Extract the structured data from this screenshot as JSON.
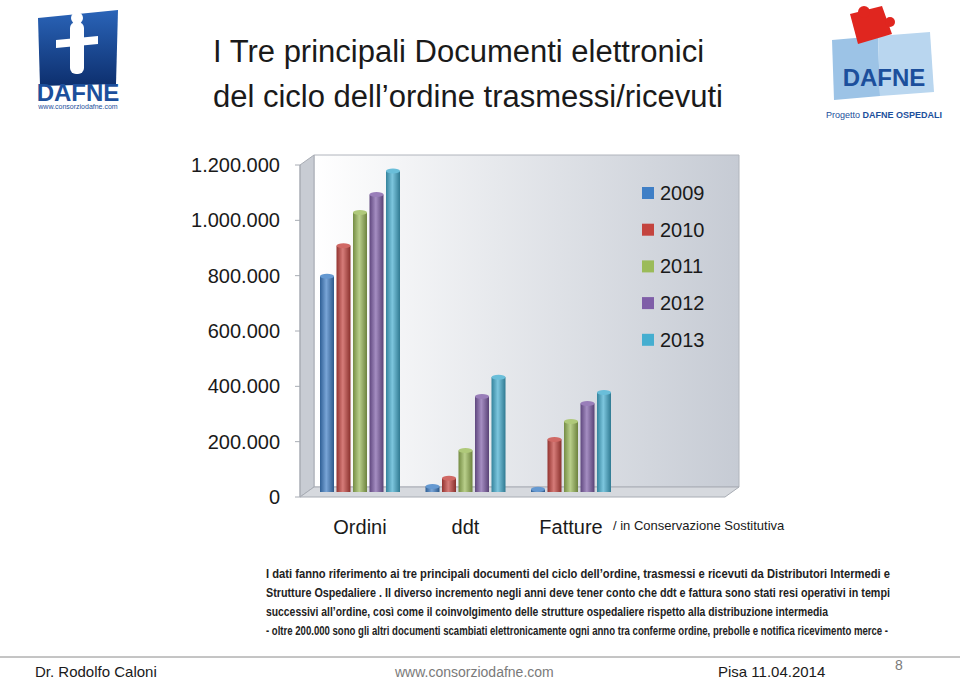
{
  "slide": {
    "title_lines": [
      "I Tre principali Documenti elettronici",
      "del ciclo dell’ordine trasmessi/ricevuti"
    ],
    "logo_left": {
      "name": "DAFNE",
      "url": "www.consorziodafne.com"
    },
    "logo_right": {
      "name": "DAFNE",
      "line1": "Progetto",
      "line2": "DAFNE OSPEDALI"
    },
    "note_lines": [
      "I dati fanno riferimento ai tre principali documenti del ciclo dell’ordine, trasmessi e ricevuti da Distributori Intermedi e",
      "Strutture Ospedaliere . Il diverso incremento negli anni deve tener conto che ddt e fattura sono stati resi operativi in tempi",
      "successivi all’ordine, così come il coinvolgimento delle strutture ospedaliere rispetto alla distribuzione intermedia",
      "- oltre 200.000 sono gli altri documenti scambiati elettronicamente ogni anno tra conferme ordine, prebolle e notifica ricevimento merce -"
    ],
    "footer": {
      "author": "Dr. Rodolfo Caloni",
      "website": "www.consorziodafne.com",
      "place_date": "Pisa 11.04.2014",
      "page": 8
    }
  },
  "chart_data": {
    "type": "bar",
    "categories": [
      "Ordini",
      "ddt",
      "Fatture"
    ],
    "series": [
      {
        "name": "2009",
        "color": "#3f7fc6",
        "values": [
          780000,
          20000,
          10000
        ]
      },
      {
        "name": "2010",
        "color": "#c4443f",
        "values": [
          890000,
          50000,
          190000
        ]
      },
      {
        "name": "2011",
        "color": "#9bbb59",
        "values": [
          1010000,
          150000,
          255000
        ]
      },
      {
        "name": "2012",
        "color": "#7f5ea8",
        "values": [
          1075000,
          345000,
          320000
        ]
      },
      {
        "name": "2013",
        "color": "#45aed0",
        "values": [
          1160000,
          415000,
          360000
        ]
      }
    ],
    "ylim": [
      0,
      1200000
    ],
    "yticks": [
      0,
      {
        "value": 200000,
        "label": "200.000"
      },
      {
        "value": 400000,
        "label": "400.000"
      },
      {
        "value": 600000,
        "label": "600.000"
      },
      {
        "value": 800000,
        "label": "800.000"
      },
      {
        "value": 1000000,
        "label": "1.000.000"
      },
      {
        "value": 1200000,
        "label": "1.200.000"
      }
    ],
    "annotations": [
      "/ in Conservazione Sostitutiva"
    ],
    "legend": "right",
    "grid": false,
    "data_labels": false
  }
}
